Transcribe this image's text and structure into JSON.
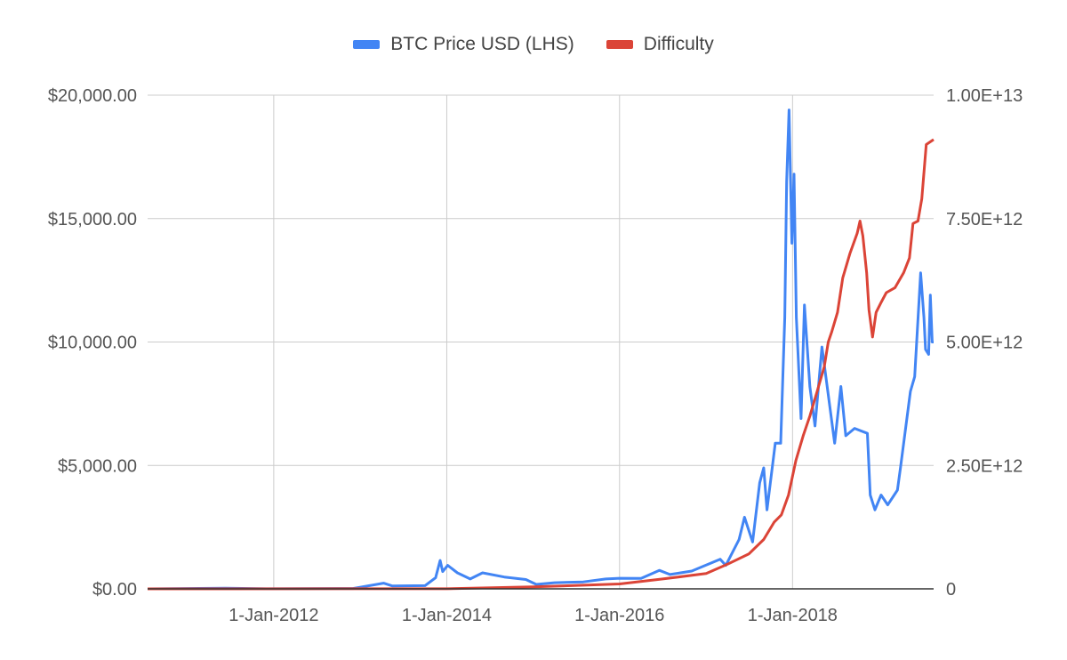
{
  "chart_data": {
    "type": "line",
    "title": "",
    "legend": {
      "placement": "top",
      "entries": [
        {
          "name": "BTC Price USD (LHS)",
          "color": "#4285f4"
        },
        {
          "name": "Difficulty",
          "color": "#db4437"
        }
      ]
    },
    "x_axis": {
      "type": "date",
      "range": [
        "2010-07-17",
        "2019-08-20"
      ],
      "ticks": [
        {
          "date": "2012-01-01",
          "label": "1-Jan-2012"
        },
        {
          "date": "2014-01-01",
          "label": "1-Jan-2014"
        },
        {
          "date": "2016-01-01",
          "label": "1-Jan-2016"
        },
        {
          "date": "2018-01-01",
          "label": "1-Jan-2018"
        }
      ]
    },
    "y_axis_left": {
      "range": [
        0,
        20000
      ],
      "ticks": [
        {
          "value": 0,
          "label": "$0.00"
        },
        {
          "value": 5000,
          "label": "$5,000.00"
        },
        {
          "value": 10000,
          "label": "$10,000.00"
        },
        {
          "value": 15000,
          "label": "$15,000.00"
        },
        {
          "value": 20000,
          "label": "$20,000.00"
        }
      ]
    },
    "y_axis_right": {
      "range": [
        0,
        10000000000000
      ],
      "ticks": [
        {
          "value": 0,
          "label": "0"
        },
        {
          "value": 2500000000000,
          "label": "2.50E+12"
        },
        {
          "value": 5000000000000,
          "label": "5.00E+12"
        },
        {
          "value": 7500000000000,
          "label": "7.50E+12"
        },
        {
          "value": 10000000000000,
          "label": "1.00E+13"
        }
      ]
    },
    "grid": {
      "vertical": true,
      "horizontal": true
    },
    "series": [
      {
        "name": "BTC Price USD (LHS)",
        "axis": "left",
        "color": "#4285f4",
        "points": [
          [
            "2010-07-17",
            0.05
          ],
          [
            "2011-06-08",
            30
          ],
          [
            "2011-12-01",
            3
          ],
          [
            "2012-12-01",
            13
          ],
          [
            "2013-04-09",
            230
          ],
          [
            "2013-05-15",
            120
          ],
          [
            "2013-10-01",
            130
          ],
          [
            "2013-11-15",
            450
          ],
          [
            "2013-12-04",
            1150
          ],
          [
            "2013-12-15",
            700
          ],
          [
            "2014-01-05",
            950
          ],
          [
            "2014-02-15",
            650
          ],
          [
            "2014-04-10",
            400
          ],
          [
            "2014-06-01",
            650
          ],
          [
            "2014-09-01",
            480
          ],
          [
            "2014-12-01",
            380
          ],
          [
            "2015-01-14",
            180
          ],
          [
            "2015-04-01",
            250
          ],
          [
            "2015-08-01",
            280
          ],
          [
            "2015-11-04",
            400
          ],
          [
            "2016-01-01",
            430
          ],
          [
            "2016-04-01",
            420
          ],
          [
            "2016-06-17",
            750
          ],
          [
            "2016-08-01",
            580
          ],
          [
            "2016-11-01",
            720
          ],
          [
            "2016-12-31",
            960
          ],
          [
            "2017-03-01",
            1200
          ],
          [
            "2017-03-25",
            950
          ],
          [
            "2017-05-20",
            2000
          ],
          [
            "2017-06-12",
            2900
          ],
          [
            "2017-07-16",
            1900
          ],
          [
            "2017-08-15",
            4300
          ],
          [
            "2017-09-01",
            4900
          ],
          [
            "2017-09-15",
            3200
          ],
          [
            "2017-10-20",
            5900
          ],
          [
            "2017-11-12",
            5900
          ],
          [
            "2017-11-29",
            11000
          ],
          [
            "2017-12-07",
            16500
          ],
          [
            "2017-12-17",
            19400
          ],
          [
            "2017-12-29",
            14000
          ],
          [
            "2018-01-07",
            16800
          ],
          [
            "2018-01-17",
            11000
          ],
          [
            "2018-02-06",
            6900
          ],
          [
            "2018-02-20",
            11500
          ],
          [
            "2018-03-15",
            8200
          ],
          [
            "2018-04-06",
            6600
          ],
          [
            "2018-05-05",
            9800
          ],
          [
            "2018-06-28",
            5900
          ],
          [
            "2018-07-24",
            8200
          ],
          [
            "2018-08-14",
            6200
          ],
          [
            "2018-09-20",
            6500
          ],
          [
            "2018-11-13",
            6300
          ],
          [
            "2018-11-25",
            3800
          ],
          [
            "2018-12-15",
            3200
          ],
          [
            "2019-01-10",
            3800
          ],
          [
            "2019-02-07",
            3400
          ],
          [
            "2019-03-20",
            4000
          ],
          [
            "2019-04-02",
            4900
          ],
          [
            "2019-05-14",
            8000
          ],
          [
            "2019-06-01",
            8600
          ],
          [
            "2019-06-26",
            12800
          ],
          [
            "2019-07-10",
            11000
          ],
          [
            "2019-07-17",
            9700
          ],
          [
            "2019-07-30",
            9500
          ],
          [
            "2019-08-06",
            11900
          ],
          [
            "2019-08-14",
            10000
          ],
          [
            "2019-08-20",
            10000
          ]
        ]
      },
      {
        "name": "Difficulty",
        "axis": "right",
        "color": "#db4437",
        "points": [
          [
            "2010-07-17",
            0
          ],
          [
            "2013-01-01",
            2000000000
          ],
          [
            "2014-01-01",
            1400000000
          ],
          [
            "2015-01-01",
            40000000000
          ],
          [
            "2016-01-01",
            100000000000
          ],
          [
            "2016-07-01",
            200000000000
          ],
          [
            "2017-01-01",
            310000000000
          ],
          [
            "2017-04-01",
            500000000000
          ],
          [
            "2017-07-01",
            710000000000
          ],
          [
            "2017-09-01",
            1000000000000
          ],
          [
            "2017-10-15",
            1350000000000
          ],
          [
            "2017-11-15",
            1500000000000
          ],
          [
            "2017-12-15",
            1900000000000
          ],
          [
            "2018-01-15",
            2600000000000
          ],
          [
            "2018-02-15",
            3100000000000
          ],
          [
            "2018-03-15",
            3500000000000
          ],
          [
            "2018-04-15",
            4000000000000
          ],
          [
            "2018-05-15",
            4500000000000
          ],
          [
            "2018-06-01",
            5000000000000
          ],
          [
            "2018-06-15",
            5200000000000
          ],
          [
            "2018-07-10",
            5600000000000
          ],
          [
            "2018-08-01",
            6300000000000
          ],
          [
            "2018-09-01",
            6800000000000
          ],
          [
            "2018-10-01",
            7200000000000
          ],
          [
            "2018-10-13",
            7450000000000
          ],
          [
            "2018-10-25",
            7150000000000
          ],
          [
            "2018-11-10",
            6400000000000
          ],
          [
            "2018-11-20",
            5650000000000
          ],
          [
            "2018-12-05",
            5100000000000
          ],
          [
            "2018-12-20",
            5600000000000
          ],
          [
            "2019-01-10",
            5800000000000
          ],
          [
            "2019-02-01",
            6000000000000
          ],
          [
            "2019-03-10",
            6100000000000
          ],
          [
            "2019-04-15",
            6400000000000
          ],
          [
            "2019-05-10",
            6700000000000
          ],
          [
            "2019-05-25",
            7400000000000
          ],
          [
            "2019-06-15",
            7450000000000
          ],
          [
            "2019-07-01",
            7900000000000
          ],
          [
            "2019-07-20",
            9000000000000
          ],
          [
            "2019-08-20",
            9100000000000
          ]
        ]
      }
    ]
  }
}
